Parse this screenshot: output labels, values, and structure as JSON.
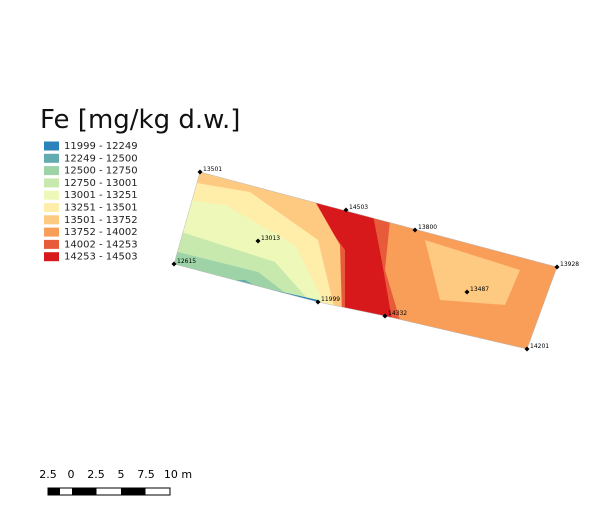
{
  "title": "Fe [mg/kg d.w.]",
  "legend": [
    {
      "label": "11999 - 12249",
      "color": "#2b83ba"
    },
    {
      "label": "12249 - 12500",
      "color": "#64abb0"
    },
    {
      "label": "12500 - 12750",
      "color": "#9dd3a7"
    },
    {
      "label": "12750 - 13001",
      "color": "#c7e9ad"
    },
    {
      "label": "13001 - 13251",
      "color": "#edf8b9"
    },
    {
      "label": "13251 - 13501",
      "color": "#ffedaa"
    },
    {
      "label": "13501 - 13752",
      "color": "#fec980"
    },
    {
      "label": "13752 - 14002",
      "color": "#f99e59"
    },
    {
      "label": "14002 - 14253",
      "color": "#e85b3a"
    },
    {
      "label": "14253 - 14503",
      "color": "#d7191c"
    }
  ],
  "points": [
    {
      "label": "13501"
    },
    {
      "label": "14503"
    },
    {
      "label": "13800"
    },
    {
      "label": "13013"
    },
    {
      "label": "12615"
    },
    {
      "label": "13928"
    },
    {
      "label": "13487"
    },
    {
      "label": "11999"
    },
    {
      "label": "14332"
    },
    {
      "label": "14201"
    }
  ],
  "scale_bar": {
    "labels": [
      "2.5",
      "0",
      "2.5",
      "5",
      "7.5",
      "10 m"
    ]
  }
}
